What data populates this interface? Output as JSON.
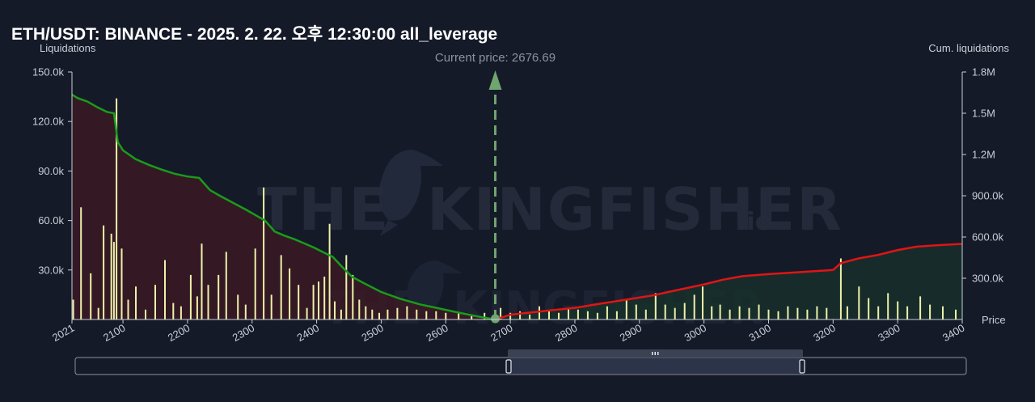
{
  "chart_data": {
    "type": "bar",
    "title": "ETH/USDT: BINANCE - 2025. 2. 22. 오후 12:30:00 all_leverage",
    "ylabel_left": "Liquidations",
    "ylabel_right": "Cum. liquidations",
    "xlabel": "Price",
    "current_price_label": "Current price: 2676.69",
    "current_price": 2676.69,
    "xlim": [
      2021,
      3400
    ],
    "ylim_left": [
      0,
      150000
    ],
    "ylim_right": [
      0,
      1800000
    ],
    "x_ticks": [
      "2021",
      "2100",
      "2200",
      "2300",
      "2400",
      "2500",
      "2600",
      "2700",
      "2800",
      "2900",
      "3000",
      "3100",
      "3200",
      "3300",
      "3400"
    ],
    "y_ticks_left": [
      "30.0k",
      "60.0k",
      "90.0k",
      "120.0k",
      "150.0k"
    ],
    "y_ticks_left_values": [
      30000,
      60000,
      90000,
      120000,
      150000
    ],
    "y_ticks_right": [
      "300.0k",
      "600.0k",
      "900.0k",
      "1.2M",
      "1.5M",
      "1.8M"
    ],
    "y_ticks_right_values": [
      300000,
      600000,
      900000,
      1200000,
      1500000,
      1800000
    ],
    "grid": false,
    "bars": {
      "price": [
        2023,
        2035,
        2050,
        2062,
        2070,
        2082,
        2086,
        2090,
        2098,
        2108,
        2120,
        2135,
        2150,
        2165,
        2178,
        2190,
        2205,
        2215,
        2222,
        2232,
        2248,
        2260,
        2278,
        2290,
        2305,
        2318,
        2330,
        2345,
        2358,
        2372,
        2385,
        2395,
        2403,
        2412,
        2420,
        2428,
        2438,
        2446,
        2456,
        2466,
        2476,
        2486,
        2497,
        2510,
        2525,
        2540,
        2555,
        2570,
        2585,
        2600,
        2620,
        2640,
        2660,
        2685,
        2700,
        2715,
        2730,
        2745,
        2760,
        2775,
        2790,
        2805,
        2820,
        2835,
        2850,
        2865,
        2880,
        2895,
        2910,
        2925,
        2940,
        2955,
        2970,
        2985,
        2998,
        3012,
        3025,
        3040,
        3055,
        3070,
        3085,
        3100,
        3115,
        3130,
        3145,
        3160,
        3175,
        3190,
        3212,
        3222,
        3240,
        3255,
        3270,
        3285,
        3300,
        3315,
        3335,
        3350,
        3370,
        3390
      ],
      "value": [
        12000,
        68000,
        28000,
        7000,
        57000,
        52000,
        47000,
        134000,
        43000,
        12000,
        20000,
        6000,
        21000,
        36000,
        10000,
        8000,
        27000,
        14000,
        46000,
        21000,
        27000,
        41000,
        15000,
        9000,
        43000,
        80000,
        15000,
        39000,
        31000,
        21000,
        7000,
        21000,
        23000,
        26000,
        58000,
        11000,
        6000,
        39000,
        27000,
        12000,
        8000,
        6000,
        4000,
        6000,
        7000,
        8000,
        6000,
        5000,
        5000,
        4000,
        4000,
        3000,
        4000,
        7000,
        4000,
        5000,
        3000,
        8000,
        5000,
        4000,
        7000,
        6000,
        5000,
        4000,
        8000,
        5000,
        12000,
        9000,
        6000,
        16000,
        9000,
        7000,
        10000,
        15000,
        20000,
        8000,
        9000,
        6000,
        8000,
        7000,
        9000,
        6000,
        5000,
        8000,
        7000,
        6000,
        8000,
        7000,
        37000,
        8000,
        20000,
        13000,
        8000,
        16000,
        11000,
        8000,
        14000,
        9000,
        8000,
        6000
      ],
      "color": "#eef2a8"
    },
    "cumulative_short": {
      "name": "",
      "color": "#1a9c1a",
      "x": [
        2021,
        2030,
        2045,
        2060,
        2075,
        2086,
        2092,
        2100,
        2120,
        2140,
        2160,
        2180,
        2200,
        2218,
        2235,
        2250,
        2270,
        2290,
        2305,
        2320,
        2335,
        2350,
        2365,
        2380,
        2395,
        2410,
        2425,
        2440,
        2455,
        2475,
        2500,
        2530,
        2560,
        2590,
        2620,
        2650,
        2676.69
      ],
      "y": [
        1635000,
        1610000,
        1585000,
        1545000,
        1510000,
        1500000,
        1290000,
        1230000,
        1165000,
        1125000,
        1090000,
        1060000,
        1040000,
        1030000,
        940000,
        900000,
        850000,
        800000,
        760000,
        720000,
        640000,
        610000,
        585000,
        555000,
        525000,
        490000,
        455000,
        380000,
        310000,
        260000,
        200000,
        150000,
        110000,
        80000,
        50000,
        22000,
        0
      ]
    },
    "cumulative_long": {
      "name": "",
      "color": "#e01515",
      "x": [
        2676.69,
        2700,
        2730,
        2760,
        2800,
        2840,
        2880,
        2920,
        2960,
        3000,
        3030,
        3060,
        3100,
        3150,
        3200,
        3212,
        3240,
        3270,
        3300,
        3330,
        3360,
        3400
      ],
      "y": [
        0,
        35000,
        50000,
        65000,
        85000,
        115000,
        145000,
        175000,
        215000,
        255000,
        290000,
        315000,
        330000,
        345000,
        360000,
        410000,
        445000,
        470000,
        505000,
        530000,
        540000,
        550000
      ]
    }
  }
}
